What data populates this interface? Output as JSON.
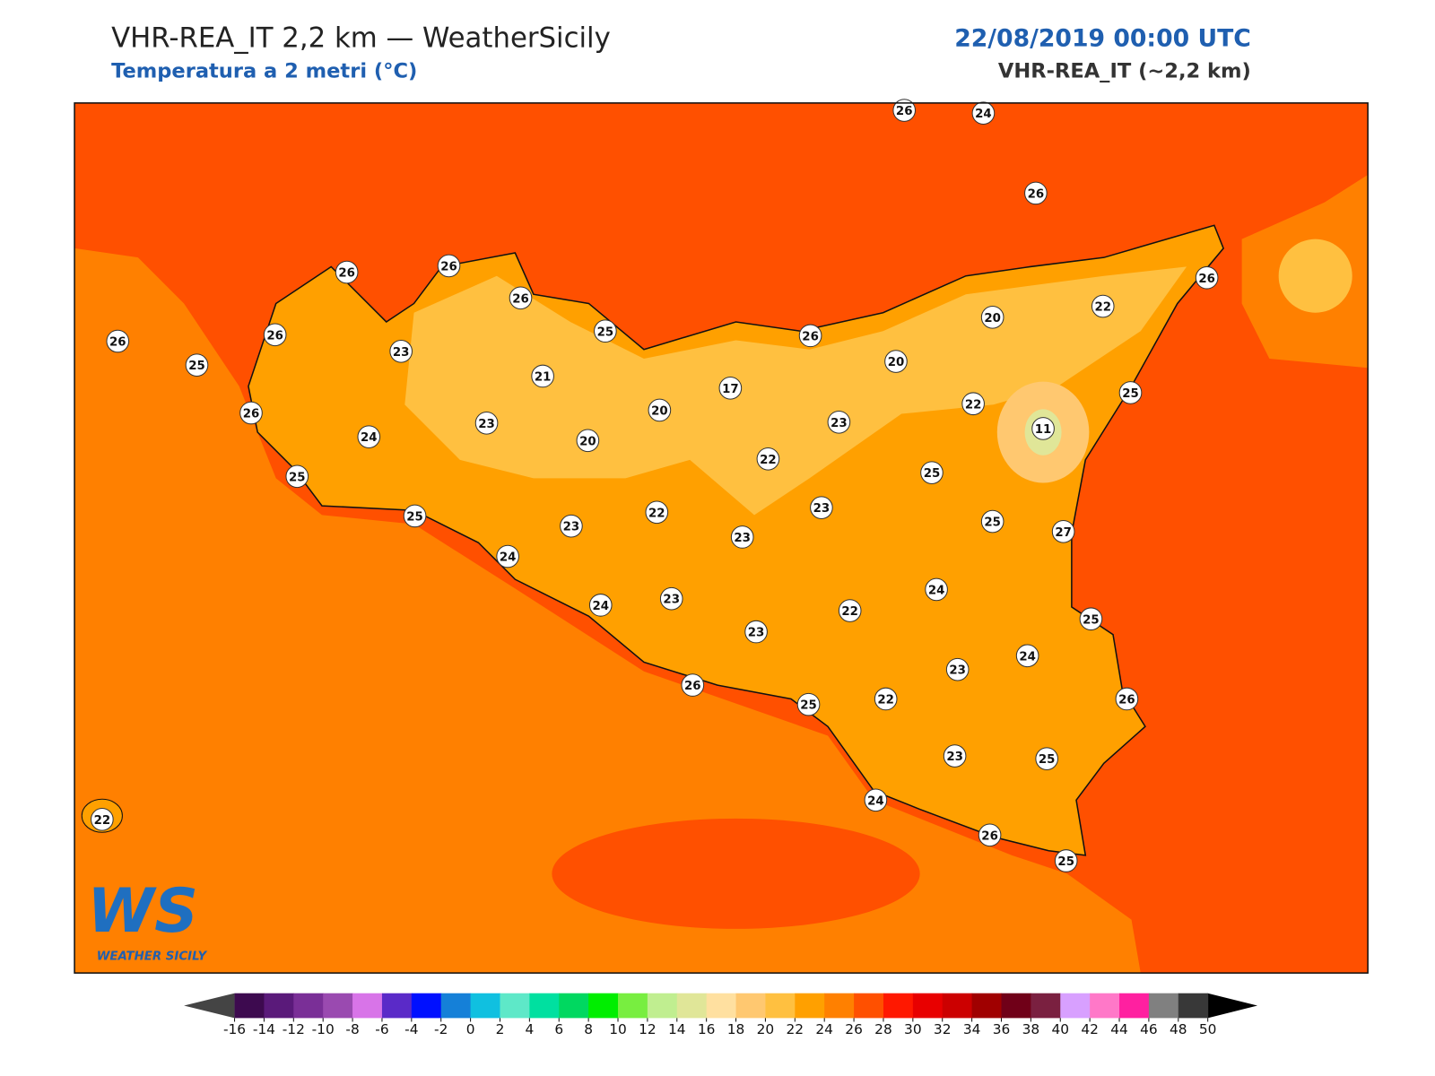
{
  "header": {
    "title": "VHR-REA_IT 2,2 km — WeatherSicily",
    "subtitle": "Temperatura a 2 metri (°C)",
    "datetime": "22/08/2019 00:00 UTC",
    "model": "VHR-REA_IT (~2,2 km)"
  },
  "map": {
    "stations": [
      26,
      24,
      26,
      26,
      26,
      26,
      25,
      26,
      26,
      25,
      23,
      21,
      26,
      23,
      24,
      20,
      20,
      17,
      26,
      20,
      20,
      22,
      26,
      25,
      22,
      11,
      23,
      22,
      25,
      25,
      25,
      22,
      23,
      23,
      23,
      25,
      27,
      24,
      24,
      23,
      23,
      22,
      24,
      25,
      24,
      23,
      26,
      25,
      22,
      26,
      23,
      25,
      24,
      26,
      25,
      22
    ]
  },
  "logo": {
    "mark": "WS",
    "name": "WEATHER SICILY"
  },
  "colorbar": {
    "ticks": [
      -16,
      -14,
      -12,
      -10,
      -8,
      -6,
      -4,
      -2,
      0,
      2,
      4,
      6,
      8,
      10,
      12,
      14,
      16,
      18,
      20,
      22,
      24,
      26,
      28,
      30,
      32,
      34,
      36,
      38,
      40,
      42,
      44,
      46,
      48,
      50
    ],
    "colors": [
      "#3d0a4f",
      "#5a1a7a",
      "#7a2f97",
      "#9a4ab0",
      "#d874e8",
      "#5a2ac8",
      "#0010ff",
      "#1580d8",
      "#10c0e0",
      "#5ee8c8",
      "#00e0a0",
      "#00d860",
      "#00ee00",
      "#78ee40",
      "#c0ee90",
      "#e0e698",
      "#ffe0a0",
      "#ffc870",
      "#ffc040",
      "#ffa000",
      "#ff8000",
      "#ff5000",
      "#ff1800",
      "#e80000",
      "#cc0000",
      "#a00000",
      "#700018",
      "#7a2040",
      "#d8a0ff",
      "#ff78c8",
      "#ff20a0",
      "#808080",
      "#383838"
    ]
  }
}
